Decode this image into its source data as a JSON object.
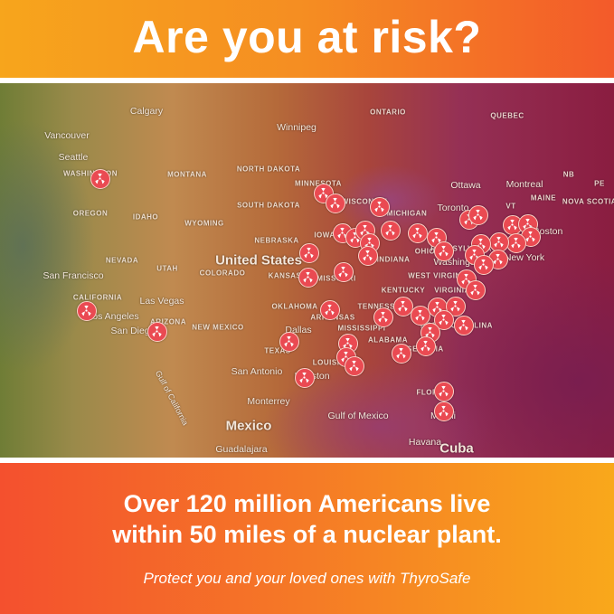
{
  "header": {
    "title": "Are you at risk?"
  },
  "map": {
    "marker_icon": "radiation-icon",
    "marker_color": "#ea4a52",
    "labels": {
      "calgary": "Calgary",
      "winnipeg": "Winnipeg",
      "ontario": "ONTARIO",
      "quebec": "QUEBEC",
      "vancouver": "Vancouver",
      "seattle": "Seattle",
      "washington": "WASHINGTON",
      "montana": "MONTANA",
      "north_dakota": "NORTH DAKOTA",
      "minnesota": "MINNESOTA",
      "ottawa": "Ottawa",
      "montreal": "Montreal",
      "nb": "NB",
      "pe": "PE",
      "south_dakota": "SOUTH DAKOTA",
      "wisconsin": "WISCONSIN",
      "maine": "MAINE",
      "vt": "VT",
      "nova_scotia": "NOVA SCOTIA",
      "oregon": "OREGON",
      "idaho": "IDAHO",
      "wyoming": "WYOMING",
      "michigan": "MICHIGAN",
      "toronto": "Toronto",
      "nebraska": "NEBRASKA",
      "iowa": "IOWA",
      "boston": "Boston",
      "new_york": "New York",
      "nevada": "NEVADA",
      "utah": "UTAH",
      "united_states": "United States",
      "colorado": "COLORADO",
      "kansas": "KANSAS",
      "missouri": "MISSOURI",
      "indiana": "INDIANA",
      "ohio": "OHIO",
      "pennsylvania": "PENNSYLVANIA",
      "washington_dc": "Washington",
      "west_virginia": "WEST VIRGINIA",
      "kentucky": "KENTUCKY",
      "virginia": "VIRGINIA",
      "san_francisco": "San Francisco",
      "california": "CALIFORNIA",
      "las_vegas": "Las Vegas",
      "los_angeles": "Los Angeles",
      "arizona": "ARIZONA",
      "san_diego": "San Diego",
      "new_mexico": "NEW MEXICO",
      "oklahoma": "OKLAHOMA",
      "arkansas": "ARKANSAS",
      "tennessee": "TENNESSEE",
      "mississippi": "MISSISSIPPI",
      "north_carolina": "NORTH CAROLINA",
      "dallas": "Dallas",
      "alabama": "ALABAMA",
      "texas": "TEXAS",
      "louisiana": "LOUISIANA",
      "georgia": "GEORGIA",
      "san_antonio": "San Antonio",
      "houston": "Houston",
      "gulf_of_california": "Gulf of California",
      "monterrey": "Monterrey",
      "florida": "FLORIDA",
      "miami": "Miami",
      "gulf_of_mexico": "Gulf of Mexico",
      "mexico": "Mexico",
      "havana": "Havana",
      "cuba": "Cuba",
      "guadalajara": "Guadalajara"
    }
  },
  "footer": {
    "headline_line1": "Over 120 million Americans live",
    "headline_line2": "within 50 miles of a nuclear plant.",
    "tagline": "Protect you and your loved ones with ThyroSafe"
  }
}
